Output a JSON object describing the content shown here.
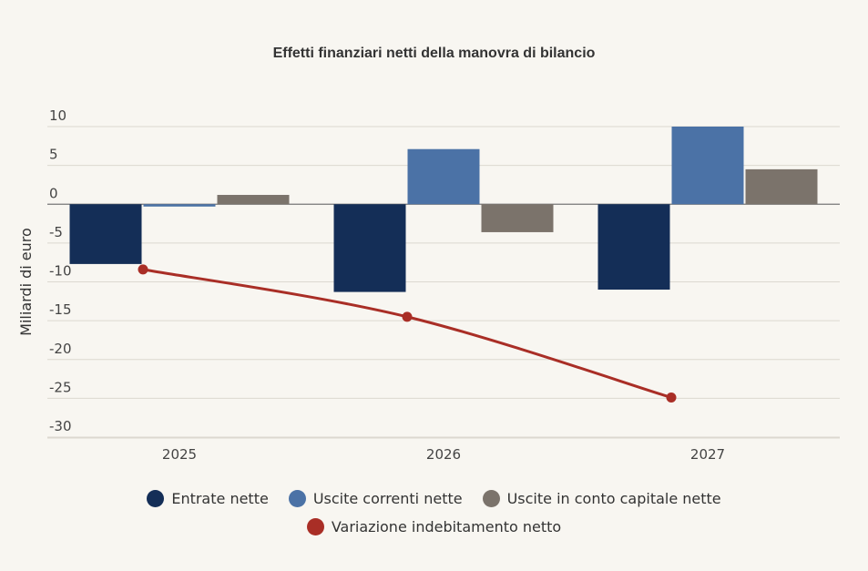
{
  "chart_data": {
    "type": "bar",
    "title": "Effetti finanziari netti della manovra di bilancio",
    "ylabel": "Miliardi di euro",
    "xlabel": "",
    "categories": [
      "2025",
      "2026",
      "2027"
    ],
    "ylim": [
      -30,
      10
    ],
    "yticks": [
      10,
      5,
      0,
      -5,
      -10,
      -15,
      -20,
      -25,
      -30
    ],
    "grid": true,
    "legend_position": "bottom",
    "series": [
      {
        "name": "Entrate nette",
        "kind": "bar",
        "color": "#142e57",
        "values": [
          -7.7,
          -11.3,
          -11.0
        ]
      },
      {
        "name": "Uscite correnti nette",
        "kind": "bar",
        "color": "#4b72a6",
        "values": [
          -0.3,
          7.1,
          10.0
        ]
      },
      {
        "name": "Uscite in conto capitale nette",
        "kind": "bar",
        "color": "#7b736b",
        "values": [
          1.2,
          -3.6,
          4.5
        ]
      },
      {
        "name": "Variazione indebitamento netto",
        "kind": "line",
        "color": "#a92e26",
        "values": [
          -8.4,
          -14.5,
          -24.9
        ]
      }
    ]
  }
}
